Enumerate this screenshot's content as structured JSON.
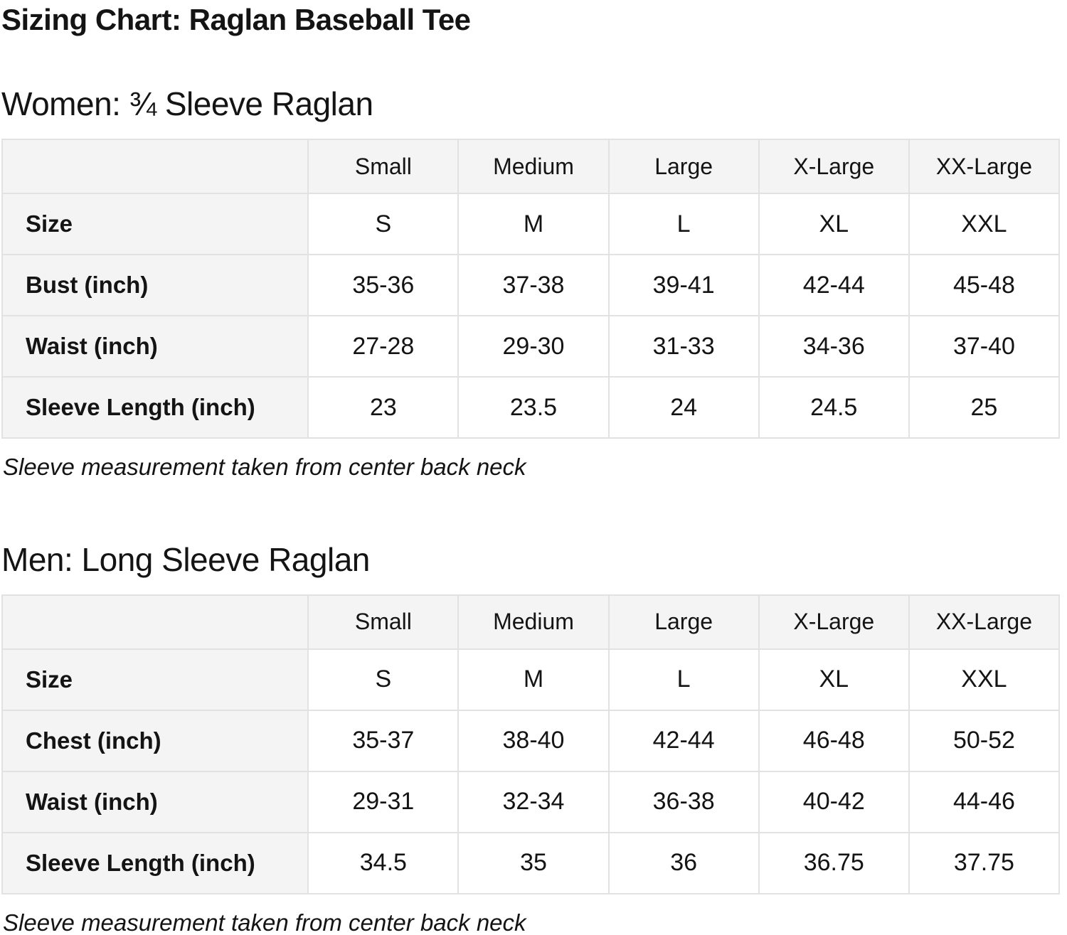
{
  "page": {
    "title": "Sizing Chart: Raglan Baseball Tee"
  },
  "colors": {
    "header_background": "#f4f4f4",
    "cell_background": "#ffffff",
    "border": "#e2e2e2",
    "text": "#141414"
  },
  "sections": [
    {
      "heading": "Women: ¾ Sleeve Raglan",
      "note": "Sleeve measurement taken from center back neck",
      "table": {
        "column_headers": [
          "",
          "Small",
          "Medium",
          "Large",
          "X-Large",
          "XX-Large"
        ],
        "rows": [
          {
            "label": "Size",
            "values": [
              "S",
              "M",
              "L",
              "XL",
              "XXL"
            ]
          },
          {
            "label": "Bust (inch)",
            "values": [
              "35-36",
              "37-38",
              "39-41",
              "42-44",
              "45-48"
            ]
          },
          {
            "label": "Waist (inch)",
            "values": [
              "27-28",
              "29-30",
              "31-33",
              "34-36",
              "37-40"
            ]
          },
          {
            "label": "Sleeve Length (inch)",
            "values": [
              "23",
              "23.5",
              "24",
              "24.5",
              "25"
            ]
          }
        ]
      }
    },
    {
      "heading": "Men: Long Sleeve Raglan",
      "note": "Sleeve measurement taken from center back neck",
      "table": {
        "column_headers": [
          "",
          "Small",
          "Medium",
          "Large",
          "X-Large",
          "XX-Large"
        ],
        "rows": [
          {
            "label": "Size",
            "values": [
              "S",
              "M",
              "L",
              "XL",
              "XXL"
            ]
          },
          {
            "label": "Chest (inch)",
            "values": [
              "35-37",
              "38-40",
              "42-44",
              "46-48",
              "50-52"
            ]
          },
          {
            "label": "Waist (inch)",
            "values": [
              "29-31",
              "32-34",
              "36-38",
              "40-42",
              "44-46"
            ]
          },
          {
            "label": "Sleeve Length (inch)",
            "values": [
              "34.5",
              "35",
              "36",
              "36.75",
              "37.75"
            ]
          }
        ]
      }
    }
  ]
}
